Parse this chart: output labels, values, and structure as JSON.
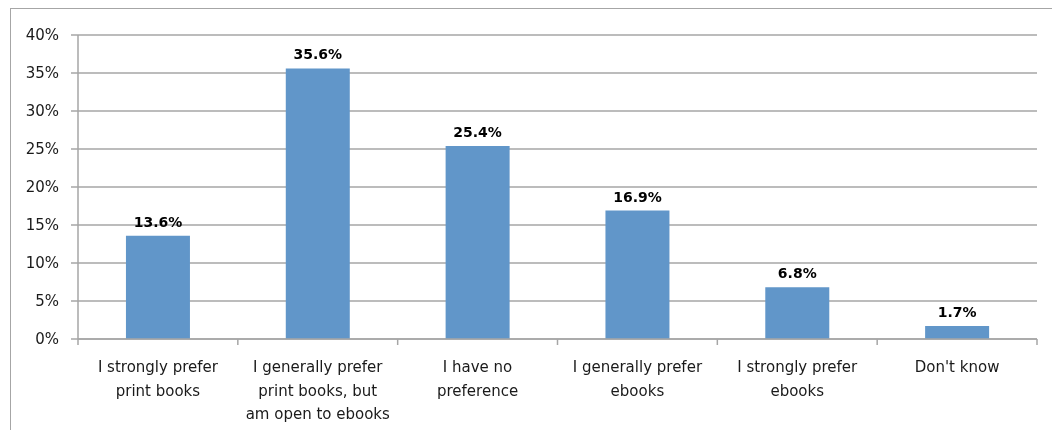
{
  "chart_data": {
    "type": "bar",
    "categories": [
      "I strongly prefer print books",
      "I generally prefer print books, but am open to ebooks",
      "I have no preference",
      "I generally prefer ebooks",
      "I strongly prefer ebooks",
      "Don't know"
    ],
    "values": [
      13.6,
      35.6,
      25.4,
      16.9,
      6.8,
      1.7
    ],
    "color": "#6196c9",
    "value_labels": [
      "13.6%",
      "35.6%",
      "25.4%",
      "16.9%",
      "6.8%",
      "1.7%"
    ],
    "ylim": [
      0,
      40
    ],
    "yticks": [
      {
        "value": 0,
        "label": "0%"
      },
      {
        "value": 5,
        "label": "5%"
      },
      {
        "value": 10,
        "label": "10%"
      },
      {
        "value": 15,
        "label": "15%"
      },
      {
        "value": 20,
        "label": "20%"
      },
      {
        "value": 25,
        "label": "25%"
      },
      {
        "value": 30,
        "label": "30%"
      },
      {
        "value": 35,
        "label": "35%"
      },
      {
        "value": 40,
        "label": "40%"
      }
    ],
    "grid": "y"
  }
}
